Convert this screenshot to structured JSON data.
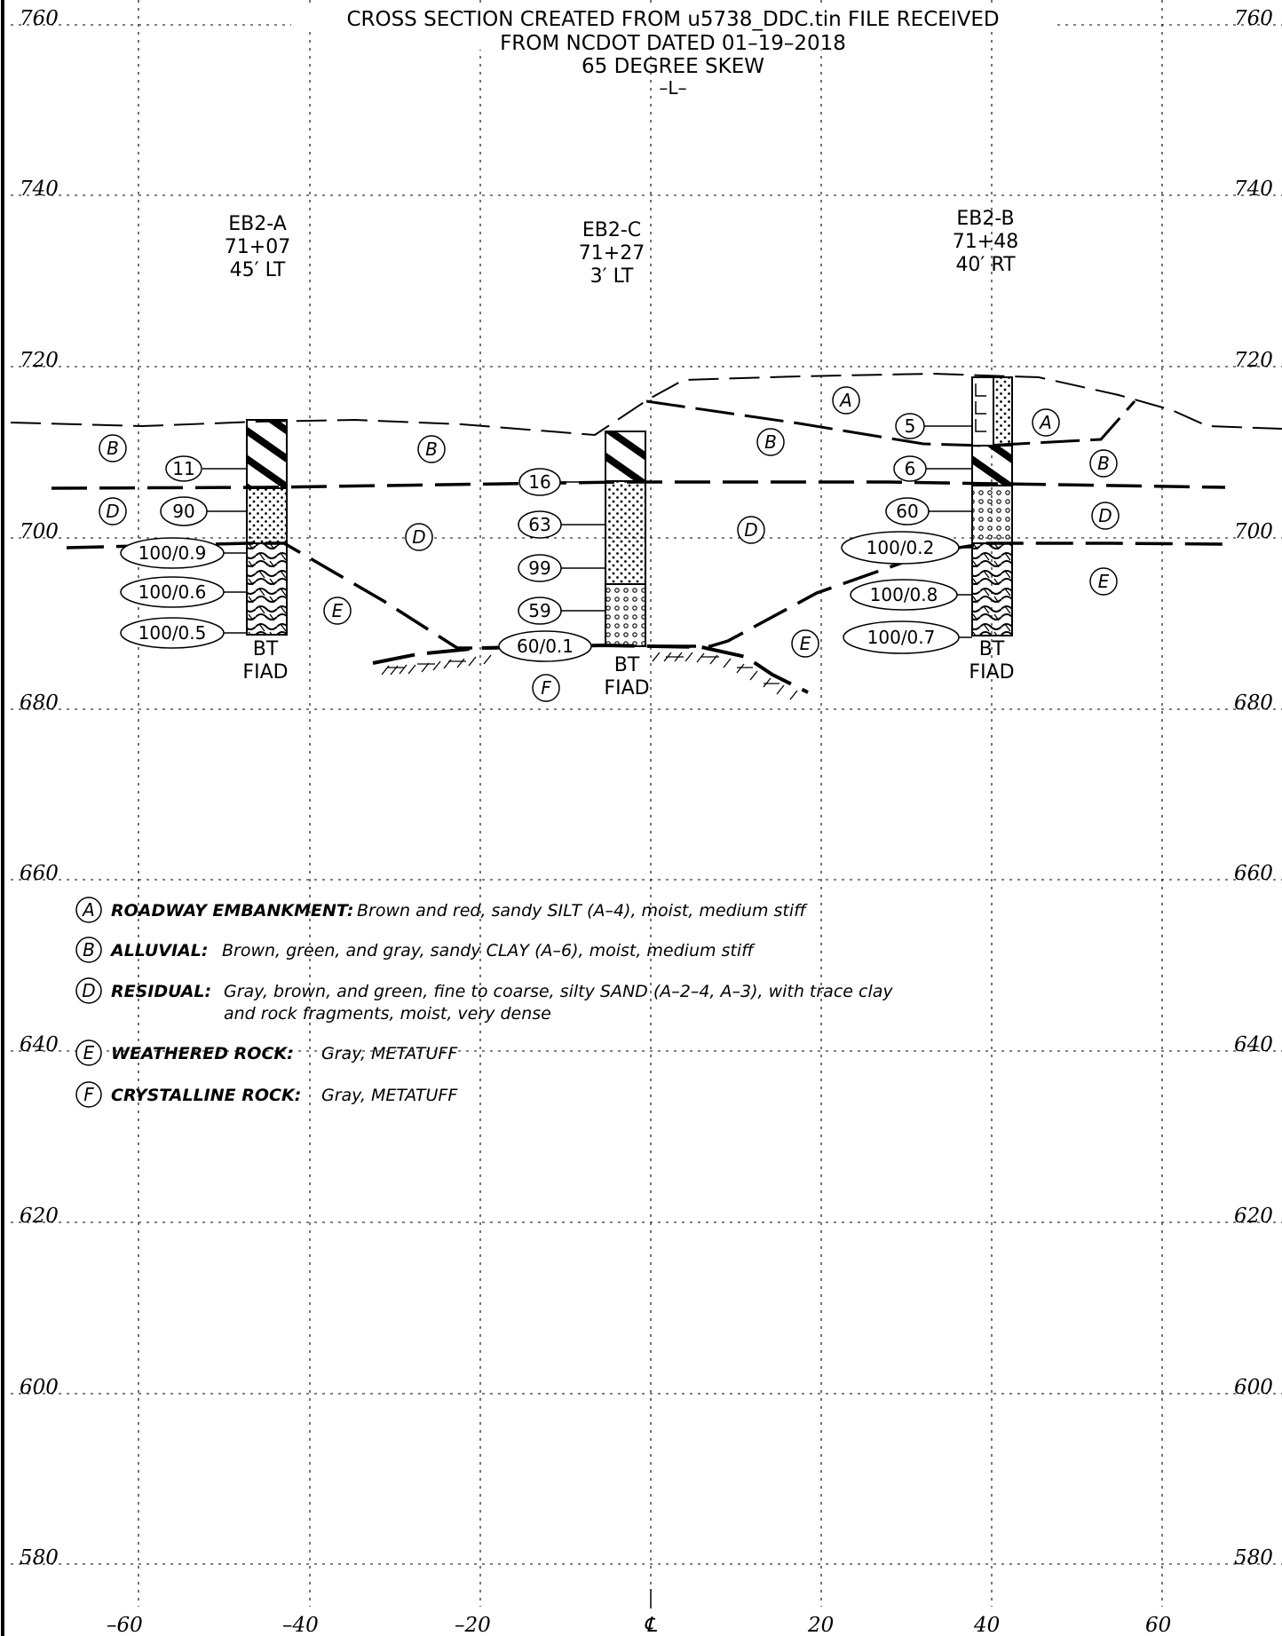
{
  "title": {
    "line1": "CROSS SECTION  CREATED  FROM  u5738_DDC.tin  FILE RECEIVED",
    "line2": "FROM  NCDOT  DATED  01–19–2018",
    "line3": "65  DEGREE  SKEW",
    "line4": "–L–"
  },
  "elevations": [
    "760",
    "740",
    "720",
    "700",
    "680",
    "660",
    "640",
    "620",
    "600",
    "580"
  ],
  "offsets": [
    "–60",
    "–40",
    "–20",
    "℄",
    "20",
    "40",
    "60"
  ],
  "borings": [
    {
      "name": "EB2-A",
      "station": "71+07",
      "offset": "45′ LT",
      "term1": "BT",
      "term2": "FIAD"
    },
    {
      "name": "EB2-C",
      "station": "71+27",
      "offset": "3′ LT",
      "term1": "BT",
      "term2": "FIAD"
    },
    {
      "name": "EB2-B",
      "station": "71+48",
      "offset": "40′ RT",
      "term1": "BT",
      "term2": "FIAD"
    }
  ],
  "blow_counts": {
    "eb2a": [
      "11",
      "90",
      "100/0.9",
      "100/0.6",
      "100/0.5"
    ],
    "eb2c": [
      "16",
      "63",
      "99",
      "59",
      "60/0.1"
    ],
    "eb2b": [
      "5",
      "6",
      "60",
      "100/0.2",
      "100/0.8",
      "100/0.7"
    ]
  },
  "strata_labels": {
    "A": "A",
    "B": "B",
    "D": "D",
    "E": "E",
    "F": "F"
  },
  "legend": [
    {
      "key": "A",
      "name": "ROADWAY  EMBANKMENT:",
      "desc": "Brown and red, sandy SILT (A–4), moist, medium stiff",
      "desc2": ""
    },
    {
      "key": "B",
      "name": "ALLUVIAL:",
      "desc": "Brown, green, and gray, sandy CLAY (A–6), moist, medium stiff",
      "desc2": ""
    },
    {
      "key": "D",
      "name": "RESIDUAL:",
      "desc": "Gray, brown, and green, fine to coarse, silty SAND (A–2–4, A–3), with trace clay",
      "desc2": "and rock fragments, moist, very dense"
    },
    {
      "key": "E",
      "name": "WEATHERED  ROCK:",
      "desc": "Gray, METATUFF",
      "desc2": ""
    },
    {
      "key": "F",
      "name": "CRYSTALLINE  ROCK:",
      "desc": "Gray, METATUFF",
      "desc2": ""
    }
  ]
}
